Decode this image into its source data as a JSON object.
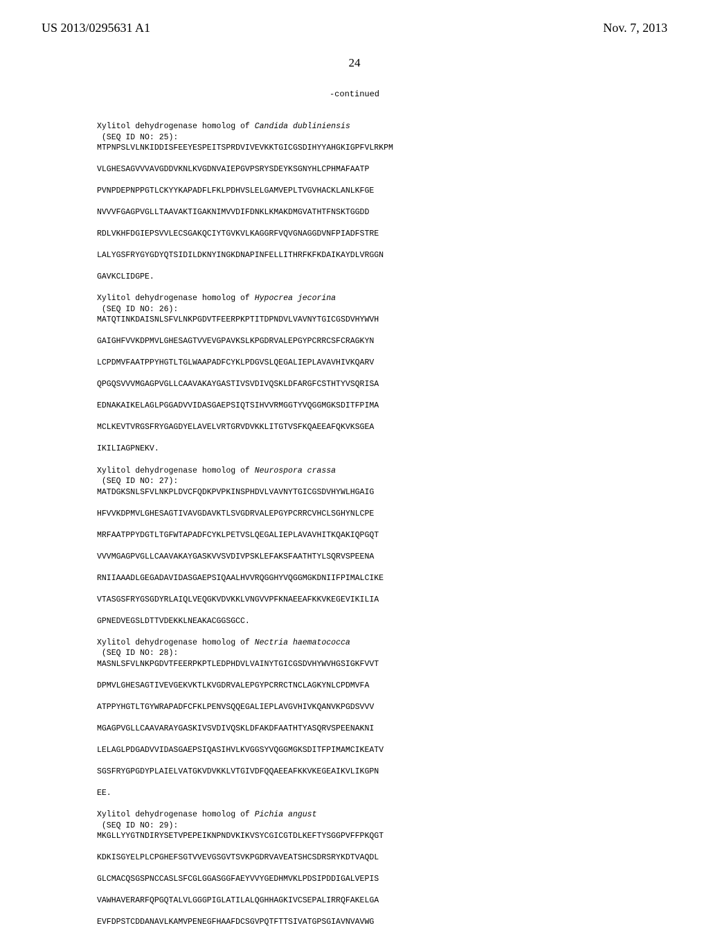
{
  "header": {
    "pub_number": "US 2013/0295631 A1",
    "pub_date": "Nov. 7, 2013",
    "page_number": "24"
  },
  "continued_label": "-continued",
  "sections": [
    {
      "title_pre": "Xylitol dehydrogenase homolog of ",
      "title_italic": "Candida dubliniensis",
      "seq": "(SEQ ID NO: 25):",
      "lines": [
        "MTPNPSLVLNKIDDISFEEYESPEITSPRDVIVEVKKTGICGSDIHYYAHGKIGPFVLRKPM",
        "VLGHESAGVVVAVGDDVKNLKVGDNVAIEPGVPSRYSDEYKSGNYHLCPHMAFAATP",
        "PVNPDEPNPPGTLCKYYKAPADFLFKLPDHVSLELGAMVEPLTVGVHACKLANLKFGE",
        "NVVVFGAGPVGLLTAAVAKTIGAKNIMVVDIFDNKLKMAKDMGVATHTFNSKTGGDD",
        "RDLVKHFDGIEPSVVLECSGAKQCIYTGVKVLKAGGRFVQVGNAGGDVNFPIADFSTRE",
        "LALYGSFRYGYGDYQTSIDILDKNYINGKDNAPINFELLITHRFKFKDAIKAYDLVRGGN",
        "GAVKCLIDGPE."
      ]
    },
    {
      "title_pre": "Xylitol dehydrogenase homolog of ",
      "title_italic": "Hypocrea jecorina",
      "seq": "(SEQ ID NO: 26):",
      "lines": [
        "MATQTINKDAISNLSFVLNKPGDVTFEERPKPTITDPNDVLVAVNYTGICGSDVHYWVH",
        "GAIGHFVVKDPMVLGHESAGTVVEVGPAVKSLKPGDRVALEPGYPCRRCSFCRAGKYN",
        "LCPDMVFAATPPYHGTLTGLWAAPADFCYKLPDGVSLQEGALIEPLAVAVHIVKQARV",
        "QPGQSVVVMGAGPVGLLCAAVAKAYGASTIVSVDIVQSKLDFARGFCSTHTYVSQRISA",
        "EDNAKAIKELAGLPGGADVVIDASGAEPSIQTSIHVVRMGGTYVQGGMGKSDITFPIMA",
        "MCLKEVTVRGSFRYGAGDYELAVELVRTGRVDVKKLITGTVSFKQAEEAFQKVKSGEA",
        "IKILIAGPNEKV."
      ]
    },
    {
      "title_pre": "Xylitol dehydrogenase homolog of ",
      "title_italic": "Neurospora crassa",
      "seq": "(SEQ ID NO: 27):",
      "lines": [
        "MATDGKSNLSFVLNKPLDVCFQDKPVPKINSPHDVLVAVNYTGICGSDVHYWLHGAIG",
        "HFVVKDPMVLGHESAGTIVAVGDAVKTLSVGDRVALEPGYPCRRCVHCLSGHYNLCPE",
        "MRFAATPPYDGTLTGFWTAPADFCYKLPETVSLQEGALIEPLAVAVHITKQAKIQPGQT",
        "VVVMGAGPVGLLCAAVAKAYGASKVVSVDIVPSKLEFAKSFAATHTYLSQRVSPEENA",
        "RNIIAAADLGEGADAVIDASGAEPSIQAALHVVRQGGHYVQGGMGKDNIIFPIMALCIKE",
        "VTASGSFRYGSGDYRLAIQLVEQGKVDVKKLVNGVVPFKNAEEAFKKVKEGEVIKILIA",
        "GPNEDVEGSLDTTVDEKKLNEAKACGGSGCC."
      ]
    },
    {
      "title_pre": "Xylitol dehydrogenase homolog of ",
      "title_italic": "Nectria haematococca",
      "seq": "(SEQ ID NO: 28):",
      "lines": [
        "MASNLSFVLNKPGDVTFEERPKPTLEDPHDVLVAINYTGICGSDVHYWVHGSIGKFVVT",
        "DPMVLGHESAGTIVEVGEKVKTLKVGDRVALEPGYPCRRCTNCLAGKYNLCPDMVFA",
        "ATPPYHGTLTGYWRAPADFCFKLPENVSQQEGALIEPLAVGVHIVKQANVKPGDSVVV",
        "MGAGPVGLLCAAVARAYGASKIVSVDIVQSKLDFAKDFAATHTYASQRVSPEENAKNI",
        "LELAGLPDGADVVIDASGAEPSIQASIHVLKVGGSYVQGGMGKSDITFPIMAMCIKEATV",
        "SGSFRYGPGDYPLAIELVATGKVDVKKLVTGIVDFQQAEEAFKKVKEGEAIKVLIKGPN",
        "EE."
      ]
    },
    {
      "title_pre": "Xylitol dehydrogenase homolog of ",
      "title_italic": "Pichia angust",
      "seq": "(SEQ ID NO: 29):",
      "lines": [
        "MKGLLYYGTNDIRYSETVPEPEIKNPNDVKIKVSYCGICGTDLKEFTYSGGPVFFPKQGT",
        "KDKISGYELPLCPGHEFSGTVVEVGSGVTSVKPGDRVAVEATSHCSDRSRYKDTVAQDL",
        "GLCMACQSGSPNCCASLSFCGLGGASGGFAEYVVYGEDHMVKLPDSIPDDIGALVEPIS",
        "VAWHAVERARFQPGQTALVLGGGPIGLATILALQGHHAGKIVCSEPALIRRQFAKELGA",
        "EVFDPSTCDDANAVLKAMVPENEGFHAAFDCSGVPQTFTTSIVATGPSGIAVNVAVWG"
      ]
    }
  ]
}
